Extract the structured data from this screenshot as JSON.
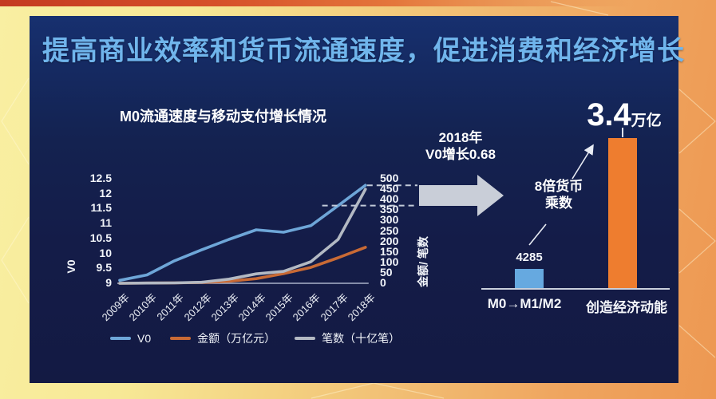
{
  "header": {
    "title": "提高商业效率和货币流通速度，促进消费和经济增长",
    "accent_color": "#70b5ec"
  },
  "chart_data": [
    {
      "type": "line",
      "title": "M0流通速度与移动支付增长情况",
      "categories": [
        "2009年",
        "2010年",
        "2011年",
        "2012年",
        "2013年",
        "2014年",
        "2015年",
        "2016年",
        "2017年",
        "2018年"
      ],
      "series": [
        {
          "name": "V0",
          "axis": "left",
          "color": "#6ea6d8",
          "values": [
            9.1,
            9.28,
            9.75,
            10.12,
            10.47,
            10.79,
            10.71,
            10.93,
            11.6,
            12.28
          ]
        },
        {
          "name": "金额（万亿元）",
          "axis": "right",
          "color": "#c96a35",
          "values": [
            0,
            1,
            2,
            4,
            10,
            22,
            46,
            76,
            122,
            172
          ]
        },
        {
          "name": "笔数（十亿笔）",
          "axis": "right",
          "color": "#b3b9c3",
          "values": [
            0,
            1,
            2,
            5,
            20,
            45,
            57,
            103,
            210,
            450
          ]
        }
      ],
      "left_axis": {
        "label": "V0",
        "min": 9,
        "max": 12.5,
        "ticks": [
          12.5,
          12,
          11.5,
          11,
          10.5,
          10,
          9.5,
          9
        ]
      },
      "right_axis": {
        "label": "金额/ 笔数",
        "min": 0,
        "max": 500,
        "ticks": [
          500,
          450,
          400,
          350,
          300,
          250,
          200,
          150,
          100,
          50,
          0
        ]
      },
      "legend": [
        {
          "label": "V0",
          "color": "#6ea6d8"
        },
        {
          "label": "金额（万亿元）",
          "color": "#c96a35"
        },
        {
          "label": "笔数（十亿笔）",
          "color": "#b3b9c3"
        }
      ],
      "grid": false,
      "legend_position": "bottom",
      "dashed_guides": {
        "from_year": "2017年",
        "to_year": "2018年"
      }
    },
    {
      "type": "bar",
      "categories": [
        "M0→M1/M2",
        "创造经济动能"
      ],
      "values": [
        4285,
        34000
      ],
      "value_labels": [
        "4285",
        "3.4万亿"
      ],
      "colors": [
        "#66a9e0",
        "#ee7d2f"
      ]
    }
  ],
  "annotations": {
    "growth_line1": "2018年",
    "growth_line2": "V0增长0.68",
    "multiplier_line1": "8倍货币",
    "multiplier_line2": "乘数",
    "big_number": "3.4",
    "big_unit": "万亿"
  },
  "colors": {
    "panel_navy": "#141c48",
    "frame_yellow": "#f9efa2",
    "frame_orange": "#ed9852",
    "arrow_gray": "#c9ced8",
    "bar_blue": "#66a9e0",
    "bar_orange": "#ee7d2f"
  }
}
